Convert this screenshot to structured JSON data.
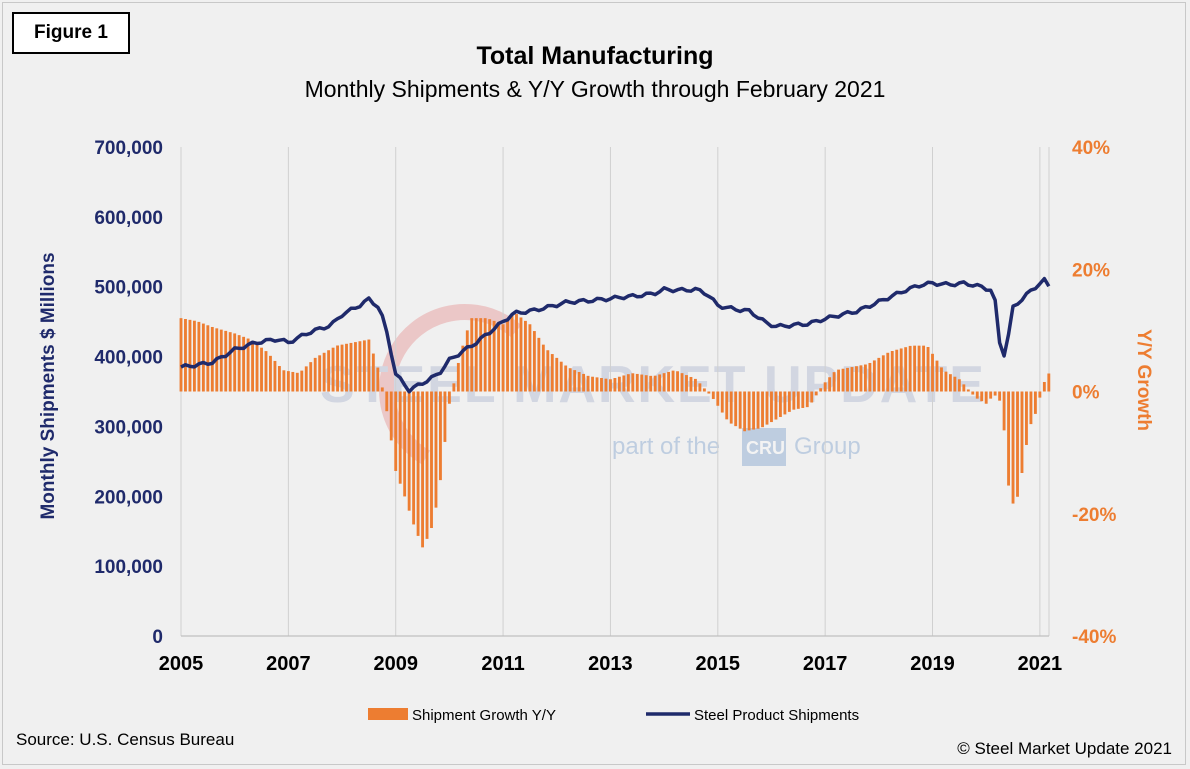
{
  "figure_label": "Figure 1",
  "source": "Source: U.S. Census Bureau",
  "copyright": "© Steel Market Update 2021",
  "watermark": {
    "brand": "STEEL MARKET UPDATE",
    "tagline_pre": "part of the",
    "tagline_logo": "CRU",
    "tagline_post": "Group"
  },
  "colors": {
    "line": "#1f2a6b",
    "bars": "#ed7d31",
    "left_axis": "#1f2a6b",
    "right_axis": "#ed7d31"
  },
  "chart_data": {
    "type": "bar+line",
    "title": "Total Manufacturing",
    "subtitle": "Monthly Shipments & Y/Y Growth through February 2021",
    "xlabel": "",
    "ylabel_left": "Monthly Shipments $ Millions",
    "ylabel_right": "Y/Y Growth",
    "x_ticks": [
      "2005",
      "2007",
      "2009",
      "2011",
      "2013",
      "2015",
      "2017",
      "2019",
      "2021"
    ],
    "x_range": [
      2005.0,
      2021.17
    ],
    "y_left_ticks": [
      "0",
      "100,000",
      "200,000",
      "300,000",
      "400,000",
      "500,000",
      "600,000",
      "700,000"
    ],
    "y_left_range": [
      0,
      700000
    ],
    "y_right_ticks": [
      "-40%",
      "-20%",
      "0%",
      "20%",
      "40%"
    ],
    "y_right_range": [
      -40,
      40
    ],
    "grid": "vertical",
    "legend_position": "bottom",
    "series": [
      {
        "name": "Shipment Growth Y/Y",
        "type": "bar",
        "axis": "right",
        "anchors_x": [
          2005.0,
          2005.3,
          2005.6,
          2006.0,
          2006.3,
          2006.6,
          2006.9,
          2007.2,
          2007.5,
          2007.9,
          2008.2,
          2008.5,
          2008.7,
          2008.85,
          2009.0,
          2009.2,
          2009.3,
          2009.5,
          2009.65,
          2009.8,
          2010.0,
          2010.2,
          2010.4,
          2010.7,
          2011.0,
          2011.2,
          2011.5,
          2011.8,
          2012.2,
          2012.6,
          2013.0,
          2013.4,
          2013.8,
          2014.2,
          2014.6,
          2014.9,
          2015.2,
          2015.5,
          2015.8,
          2016.1,
          2016.4,
          2016.7,
          2016.95,
          2017.2,
          2017.5,
          2017.8,
          2018.2,
          2018.6,
          2018.9,
          2019.2,
          2019.5,
          2019.8,
          2020.0,
          2020.15,
          2020.25,
          2020.33,
          2020.45,
          2020.6,
          2020.8,
          2020.95,
          2021.05,
          2021.17
        ],
        "anchors_y": [
          12,
          11.5,
          10.5,
          9.5,
          8.5,
          6.5,
          3.5,
          3,
          5.5,
          7.5,
          8,
          8.5,
          3,
          -4,
          -13,
          -18,
          -21,
          -25.5,
          -23,
          -17,
          -2,
          6,
          12,
          12,
          11,
          13,
          11,
          7,
          4,
          2.5,
          2,
          3,
          2.5,
          3.5,
          2,
          -1,
          -5,
          -6.5,
          -6,
          -4.5,
          -3,
          -2.5,
          1,
          3.5,
          4,
          4.5,
          6.5,
          7.5,
          7.5,
          3.5,
          2,
          -1,
          -2,
          -0.5,
          -1.5,
          -6,
          -19,
          -17,
          -6,
          -3,
          1,
          3
        ]
      },
      {
        "name": "Steel Product Shipments",
        "type": "line",
        "axis": "left",
        "anchors_x": [
          2005.0,
          2005.3,
          2005.6,
          2006.0,
          2006.4,
          2006.8,
          2007.0,
          2007.4,
          2007.8,
          2008.0,
          2008.3,
          2008.5,
          2008.7,
          2008.85,
          2009.0,
          2009.25,
          2009.5,
          2009.8,
          2010.0,
          2010.5,
          2011.0,
          2011.2,
          2011.5,
          2011.8,
          2012.2,
          2012.6,
          2013.0,
          2013.2,
          2013.5,
          2013.8,
          2014.0,
          2014.3,
          2014.6,
          2014.8,
          2015.0,
          2015.3,
          2015.6,
          2015.9,
          2016.1,
          2016.4,
          2016.7,
          2016.9,
          2017.3,
          2017.6,
          2017.9,
          2018.2,
          2018.5,
          2018.8,
          2019.0,
          2019.3,
          2019.6,
          2019.9,
          2020.1,
          2020.2,
          2020.25,
          2020.35,
          2020.5,
          2020.7,
          2020.85,
          2021.0,
          2021.1,
          2021.17
        ],
        "anchors_y": [
          385000,
          388000,
          392000,
          410000,
          420000,
          425000,
          420000,
          435000,
          445000,
          460000,
          472000,
          482000,
          470000,
          430000,
          375000,
          352000,
          362000,
          375000,
          395000,
          420000,
          450000,
          462000,
          465000,
          470000,
          478000,
          480000,
          483000,
          485000,
          487000,
          490000,
          496000,
          495000,
          496000,
          490000,
          473000,
          468000,
          465000,
          448000,
          443000,
          445000,
          447000,
          452000,
          460000,
          465000,
          475000,
          485000,
          495000,
          503000,
          505000,
          503000,
          505000,
          500000,
          495000,
          470000,
          420000,
          400000,
          470000,
          485000,
          495000,
          505000,
          510000,
          500000
        ]
      }
    ],
    "legend": [
      "Shipment Growth Y/Y",
      "Steel Product Shipments"
    ]
  }
}
